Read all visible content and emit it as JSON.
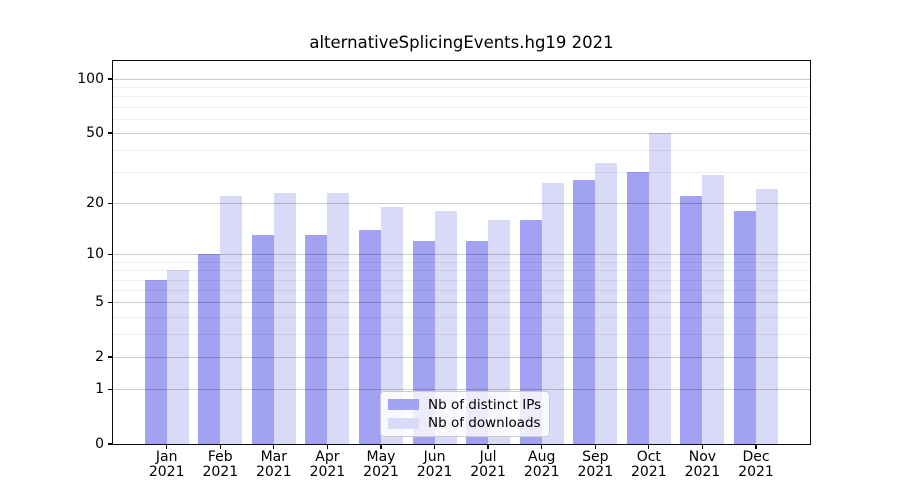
{
  "title": "alternativeSplicingEvents.hg19 2021",
  "chart_data": {
    "type": "bar",
    "title": "alternativeSplicingEvents.hg19 2021",
    "categories": [
      {
        "month": "Jan",
        "year": "2021"
      },
      {
        "month": "Feb",
        "year": "2021"
      },
      {
        "month": "Mar",
        "year": "2021"
      },
      {
        "month": "Apr",
        "year": "2021"
      },
      {
        "month": "May",
        "year": "2021"
      },
      {
        "month": "Jun",
        "year": "2021"
      },
      {
        "month": "Jul",
        "year": "2021"
      },
      {
        "month": "Aug",
        "year": "2021"
      },
      {
        "month": "Sep",
        "year": "2021"
      },
      {
        "month": "Oct",
        "year": "2021"
      },
      {
        "month": "Nov",
        "year": "2021"
      },
      {
        "month": "Dec",
        "year": "2021"
      }
    ],
    "series": [
      {
        "name": "Nb of distinct IPs",
        "color": "#a2a2f2",
        "values": [
          7,
          10,
          13,
          13,
          14,
          12,
          12,
          16,
          27,
          30,
          22,
          18
        ]
      },
      {
        "name": "Nb of downloads",
        "color": "#d9d9f8",
        "values": [
          8,
          22,
          23,
          23,
          19,
          18,
          16,
          26,
          34,
          50,
          29,
          24
        ]
      }
    ],
    "xlabel": "",
    "ylabel": "",
    "yscale": "log1p",
    "ylim": [
      0,
      126
    ],
    "grid": true,
    "yticks": [
      {
        "value": 100,
        "label": "100"
      },
      {
        "value": 50,
        "label": "50"
      },
      {
        "value": 20,
        "label": "20"
      },
      {
        "value": 10,
        "label": "10"
      },
      {
        "value": 5,
        "label": "5"
      },
      {
        "value": 2,
        "label": "2"
      },
      {
        "value": 1,
        "label": "1"
      },
      {
        "value": 0,
        "label": "0"
      }
    ],
    "major_gridline_values": [
      1,
      2,
      5,
      10,
      20,
      50,
      100
    ],
    "minor_gridline_values": [
      3,
      4,
      6,
      7,
      8,
      9,
      30,
      40,
      60,
      70,
      80,
      90
    ],
    "legend_position": "lower center"
  }
}
